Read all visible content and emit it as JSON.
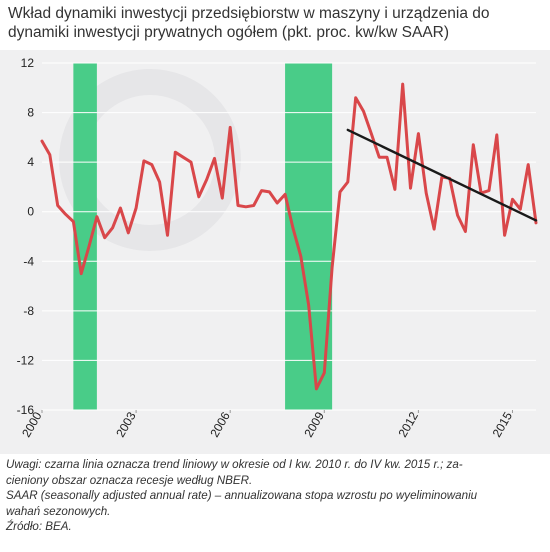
{
  "chart_data": {
    "type": "line",
    "title": "Wkład dynamiki inwestycji przedsiębiorstw w maszyny i urządzenia do dynamiki inwestycji prywatnych ogółem (pkt. proc. kw/kw SAAR)",
    "xlabel": "",
    "ylabel": "",
    "ylim": [
      -16,
      12
    ],
    "yticks": [
      "12",
      "8",
      "4",
      "0",
      "-4",
      "-8",
      "-12",
      "-16"
    ],
    "xlim": [
      2000.0,
      2015.75
    ],
    "xticks": [
      "2000",
      "2003",
      "2006",
      "2009",
      "2012",
      "2015"
    ],
    "grid": "horizontal",
    "recessions": [
      {
        "start": 2001.0,
        "end": 2001.75
      },
      {
        "start": 2007.75,
        "end": 2009.25
      }
    ],
    "series": [
      {
        "name": "",
        "color": "#d9474a",
        "x": [
          2000.0,
          2000.25,
          2000.5,
          2000.75,
          2001.0,
          2001.25,
          2001.5,
          2001.75,
          2002.0,
          2002.25,
          2002.5,
          2002.75,
          2003.0,
          2003.25,
          2003.5,
          2003.75,
          2004.0,
          2004.25,
          2004.5,
          2004.75,
          2005.0,
          2005.25,
          2005.5,
          2005.75,
          2006.0,
          2006.25,
          2006.5,
          2006.75,
          2007.0,
          2007.25,
          2007.5,
          2007.75,
          2008.0,
          2008.25,
          2008.5,
          2008.75,
          2009.0,
          2009.25,
          2009.5,
          2009.75,
          2010.0,
          2010.25,
          2010.5,
          2010.75,
          2011.0,
          2011.25,
          2011.5,
          2011.75,
          2012.0,
          2012.25,
          2012.5,
          2012.75,
          2013.0,
          2013.25,
          2013.5,
          2013.75,
          2014.0,
          2014.25,
          2014.5,
          2014.75,
          2015.0,
          2015.25,
          2015.5,
          2015.75
        ],
        "values": [
          5.7,
          4.6,
          0.5,
          -0.2,
          -0.8,
          -5.0,
          -2.8,
          -0.4,
          -2.1,
          -1.3,
          0.3,
          -1.7,
          0.3,
          4.1,
          3.8,
          2.4,
          -1.9,
          4.8,
          4.4,
          4.0,
          1.2,
          2.6,
          4.3,
          1.1,
          6.8,
          0.5,
          0.4,
          0.5,
          1.7,
          1.6,
          0.7,
          1.4,
          -1.3,
          -3.6,
          -7.5,
          -14.3,
          -13.0,
          -4.5,
          1.6,
          2.4,
          9.2,
          8.1,
          6.3,
          4.4,
          4.4,
          1.8,
          10.3,
          1.9,
          6.3,
          1.5,
          -1.4,
          2.8,
          2.7,
          -0.3,
          -1.6,
          5.4,
          1.5,
          1.7,
          6.2,
          -1.9,
          1.0,
          0.2,
          3.8,
          -0.9
        ]
      },
      {
        "name": "",
        "color": "#1a1a1a",
        "kind": "trend",
        "x": [
          2009.75,
          2015.75
        ],
        "values": [
          6.6,
          -0.7
        ]
      }
    ]
  },
  "notes": {
    "line1": "Uwagi: czarna linia oznacza trend liniowy w okresie od I kw. 2010 r. do IV kw. 2015 r.; za-",
    "line2": "cieniony obszar oznacza recesje według NBER.",
    "line3": "SAAR (seasonally adjusted annual rate) – annualizowana stopa wzrostu po wyeliminowaniu",
    "line4": "wahań sezonowych.",
    "line5": "Źródło: BEA."
  },
  "colors": {
    "panel": "#f0f0f1",
    "recession": "#49cc88",
    "grid": "#ffffff",
    "text": "#222222"
  }
}
